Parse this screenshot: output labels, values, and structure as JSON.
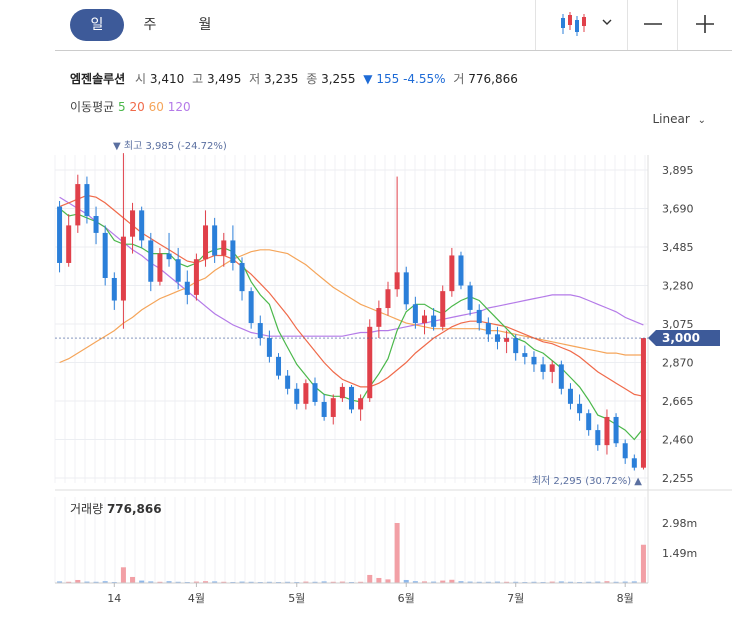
{
  "tabs": [
    {
      "label": "일",
      "active": true
    },
    {
      "label": "주",
      "active": false
    },
    {
      "label": "월",
      "active": false
    }
  ],
  "toolbar": {
    "chart_type_icon": "candlestick-icon",
    "dropdown_icon": "chevron-down-icon",
    "zoom_out_icon": "minus-icon",
    "zoom_in_icon": "plus-icon"
  },
  "stock": {
    "name": "엠젠솔루션",
    "open_label": "시",
    "open": "3,410",
    "high_label": "고",
    "high": "3,495",
    "low_label": "저",
    "low": "3,235",
    "close_label": "종",
    "close": "3,255",
    "change_arrow": "▼",
    "change": "155",
    "change_pct": "-4.55%",
    "volume_label": "거",
    "volume": "776,866"
  },
  "ma": {
    "label": "이동평균",
    "periods": [
      "5",
      "20",
      "60",
      "120"
    ],
    "colors": [
      "#4bb84b",
      "#f06a4a",
      "#f5a55a",
      "#b47ae8"
    ]
  },
  "scale_mode": "Linear",
  "colors": {
    "up": "#e0404a",
    "down": "#2b7fd9",
    "accent": "#3d5a99"
  },
  "chart_data": {
    "type": "candlestick",
    "price_axis_ticks": [
      "3,895",
      "3,690",
      "3,485",
      "3,280",
      "3,075",
      "2,870",
      "2,665",
      "2,460",
      "2,255"
    ],
    "price_ylim": [
      2255,
      3895
    ],
    "current_price_label": "3,000",
    "current_price": 3000,
    "high_annotation": "▼ 최고 3,985 (-24.72%)",
    "low_annotation": "최저 2,295 (30.72%) ▲",
    "x_tick_labels": [
      "14",
      "4월",
      "5월",
      "6월",
      "7월",
      "8월"
    ],
    "x_tick_index": [
      6,
      15,
      26,
      38,
      50,
      62
    ],
    "volume_label": "거래량",
    "volume_value": "776,866",
    "volume_axis_ticks": [
      "2.98m",
      "1.49m"
    ],
    "volume_ylim": [
      0,
      2980000
    ],
    "candles": [
      [
        3700,
        3730,
        3350,
        3400
      ],
      [
        3400,
        3660,
        3380,
        3600
      ],
      [
        3600,
        3870,
        3560,
        3820
      ],
      [
        3820,
        3860,
        3610,
        3650
      ],
      [
        3650,
        3700,
        3500,
        3560
      ],
      [
        3560,
        3600,
        3280,
        3320
      ],
      [
        3320,
        3350,
        3150,
        3200
      ],
      [
        3200,
        3985,
        3050,
        3540
      ],
      [
        3540,
        3720,
        3450,
        3680
      ],
      [
        3680,
        3700,
        3480,
        3520
      ],
      [
        3520,
        3560,
        3250,
        3300
      ],
      [
        3300,
        3480,
        3280,
        3450
      ],
      [
        3450,
        3560,
        3380,
        3420
      ],
      [
        3420,
        3480,
        3260,
        3300
      ],
      [
        3300,
        3360,
        3180,
        3230
      ],
      [
        3230,
        3450,
        3200,
        3420
      ],
      [
        3420,
        3680,
        3380,
        3600
      ],
      [
        3600,
        3640,
        3400,
        3440
      ],
      [
        3440,
        3560,
        3380,
        3520
      ],
      [
        3520,
        3600,
        3360,
        3400
      ],
      [
        3400,
        3430,
        3200,
        3250
      ],
      [
        3250,
        3270,
        3050,
        3080
      ],
      [
        3080,
        3120,
        2960,
        3000
      ],
      [
        3000,
        3040,
        2870,
        2900
      ],
      [
        2900,
        2920,
        2780,
        2800
      ],
      [
        2800,
        2830,
        2700,
        2730
      ],
      [
        2730,
        2760,
        2620,
        2650
      ],
      [
        2650,
        2780,
        2620,
        2760
      ],
      [
        2760,
        2790,
        2640,
        2660
      ],
      [
        2660,
        2700,
        2560,
        2580
      ],
      [
        2580,
        2700,
        2540,
        2680
      ],
      [
        2680,
        2760,
        2660,
        2740
      ],
      [
        2740,
        2750,
        2600,
        2620
      ],
      [
        2620,
        2700,
        2560,
        2680
      ],
      [
        2680,
        3100,
        2660,
        3060
      ],
      [
        3060,
        3200,
        3000,
        3160
      ],
      [
        3160,
        3300,
        3120,
        3260
      ],
      [
        3260,
        3860,
        3220,
        3350
      ],
      [
        3350,
        3380,
        3150,
        3180
      ],
      [
        3180,
        3220,
        3050,
        3080
      ],
      [
        3080,
        3150,
        3020,
        3120
      ],
      [
        3120,
        3160,
        3040,
        3060
      ],
      [
        3060,
        3280,
        3040,
        3250
      ],
      [
        3250,
        3480,
        3220,
        3440
      ],
      [
        3440,
        3460,
        3260,
        3280
      ],
      [
        3280,
        3300,
        3120,
        3150
      ],
      [
        3150,
        3180,
        3040,
        3080
      ],
      [
        3080,
        3110,
        2980,
        3020
      ],
      [
        3020,
        3060,
        2940,
        2980
      ],
      [
        2980,
        3040,
        2920,
        3000
      ],
      [
        3000,
        3020,
        2880,
        2920
      ],
      [
        2920,
        2960,
        2860,
        2900
      ],
      [
        2900,
        2930,
        2820,
        2860
      ],
      [
        2860,
        2900,
        2780,
        2820
      ],
      [
        2820,
        2880,
        2760,
        2860
      ],
      [
        2860,
        2880,
        2700,
        2730
      ],
      [
        2730,
        2760,
        2620,
        2650
      ],
      [
        2650,
        2700,
        2560,
        2600
      ],
      [
        2600,
        2620,
        2480,
        2510
      ],
      [
        2510,
        2540,
        2400,
        2430
      ],
      [
        2430,
        2620,
        2380,
        2580
      ],
      [
        2580,
        2600,
        2420,
        2440
      ],
      [
        2440,
        2460,
        2330,
        2360
      ],
      [
        2360,
        2380,
        2295,
        2310
      ],
      [
        2310,
        2990,
        2300,
        3000
      ]
    ],
    "volumes": [
      80000,
      60000,
      150000,
      70000,
      60000,
      90000,
      50000,
      780000,
      300000,
      120000,
      80000,
      60000,
      90000,
      60000,
      50000,
      70000,
      90000,
      80000,
      60000,
      50000,
      70000,
      60000,
      50000,
      60000,
      50000,
      60000,
      50000,
      70000,
      60000,
      80000,
      60000,
      70000,
      50000,
      60000,
      400000,
      250000,
      180000,
      2980000,
      150000,
      90000,
      80000,
      70000,
      120000,
      160000,
      90000,
      70000,
      60000,
      60000,
      70000,
      60000,
      60000,
      50000,
      60000,
      50000,
      70000,
      80000,
      60000,
      50000,
      60000,
      70000,
      90000,
      60000,
      70000,
      80000,
      1900000
    ],
    "ma5": [
      3690,
      3650,
      3660,
      3640,
      3620,
      3590,
      3520,
      3500,
      3500,
      3480,
      3450,
      3450,
      3450,
      3400,
      3380,
      3400,
      3450,
      3470,
      3480,
      3460,
      3400,
      3300,
      3230,
      3180,
      3040,
      2950,
      2860,
      2800,
      2740,
      2700,
      2690,
      2690,
      2670,
      2660,
      2740,
      2810,
      2890,
      3040,
      3140,
      3180,
      3180,
      3150,
      3130,
      3170,
      3200,
      3220,
      3200,
      3150,
      3100,
      3050,
      3000,
      2980,
      2940,
      2920,
      2880,
      2840,
      2790,
      2740,
      2670,
      2590,
      2570,
      2540,
      2510,
      2460,
      2520
    ],
    "ma20": [
      3700,
      3720,
      3740,
      3760,
      3750,
      3720,
      3680,
      3640,
      3600,
      3560,
      3530,
      3500,
      3470,
      3440,
      3410,
      3400,
      3420,
      3440,
      3440,
      3420,
      3380,
      3340,
      3290,
      3240,
      3180,
      3120,
      3050,
      2990,
      2930,
      2870,
      2820,
      2780,
      2760,
      2740,
      2740,
      2760,
      2790,
      2830,
      2870,
      2920,
      2960,
      3000,
      3030,
      3060,
      3080,
      3090,
      3090,
      3080,
      3070,
      3060,
      3040,
      3020,
      3000,
      2980,
      2970,
      2950,
      2930,
      2900,
      2860,
      2820,
      2790,
      2760,
      2730,
      2700,
      2690
    ],
    "ma60": [
      2870,
      2890,
      2920,
      2950,
      2980,
      3010,
      3040,
      3080,
      3110,
      3150,
      3180,
      3210,
      3230,
      3250,
      3270,
      3300,
      3320,
      3360,
      3390,
      3420,
      3440,
      3460,
      3470,
      3470,
      3460,
      3450,
      3420,
      3390,
      3350,
      3310,
      3270,
      3240,
      3210,
      3180,
      3160,
      3140,
      3120,
      3100,
      3080,
      3070,
      3060,
      3050,
      3050,
      3050,
      3050,
      3050,
      3050,
      3040,
      3040,
      3030,
      3020,
      3010,
      3000,
      2990,
      2980,
      2970,
      2960,
      2950,
      2940,
      2930,
      2920,
      2920,
      2910,
      2910,
      2910
    ],
    "ma120": [
      3750,
      3720,
      3690,
      3660,
      3620,
      3590,
      3550,
      3510,
      3470,
      3440,
      3400,
      3370,
      3330,
      3290,
      3250,
      3210,
      3170,
      3130,
      3100,
      3070,
      3050,
      3030,
      3020,
      3010,
      3010,
      3010,
      3010,
      3010,
      3010,
      3010,
      3010,
      3010,
      3020,
      3030,
      3030,
      3040,
      3040,
      3050,
      3060,
      3070,
      3080,
      3090,
      3100,
      3110,
      3120,
      3130,
      3140,
      3160,
      3170,
      3180,
      3190,
      3200,
      3210,
      3220,
      3230,
      3230,
      3230,
      3220,
      3200,
      3180,
      3160,
      3140,
      3110,
      3090,
      3070
    ]
  }
}
